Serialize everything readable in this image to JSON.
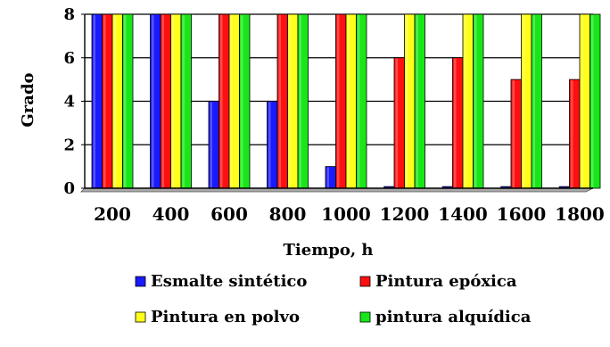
{
  "chart_data": {
    "type": "bar",
    "title": "",
    "xlabel": "Tiempo, h",
    "ylabel": "Grado",
    "categories": [
      "200",
      "400",
      "600",
      "800",
      "1000",
      "1200",
      "1400",
      "1600",
      "1800"
    ],
    "ylim": [
      0,
      8
    ],
    "yticks": [
      "0",
      "2",
      "4",
      "6",
      "8"
    ],
    "grid": true,
    "legend_position": "bottom",
    "series": [
      {
        "name": "Esmalte sintético",
        "color": "#1a1aff",
        "values": [
          8,
          8,
          4,
          4,
          1,
          0,
          0,
          0,
          0
        ]
      },
      {
        "name": "Pintura epóxica",
        "color": "#ff1010",
        "values": [
          8,
          8,
          8,
          8,
          8,
          6,
          6,
          5,
          5
        ]
      },
      {
        "name": "Pintura en polvo",
        "color": "#ffff1a",
        "values": [
          8,
          8,
          8,
          8,
          8,
          8,
          8,
          8,
          8
        ]
      },
      {
        "name": "pintura alquídica",
        "color": "#19e619",
        "values": [
          8,
          8,
          8,
          8,
          8,
          8,
          8,
          8,
          8
        ]
      }
    ]
  }
}
